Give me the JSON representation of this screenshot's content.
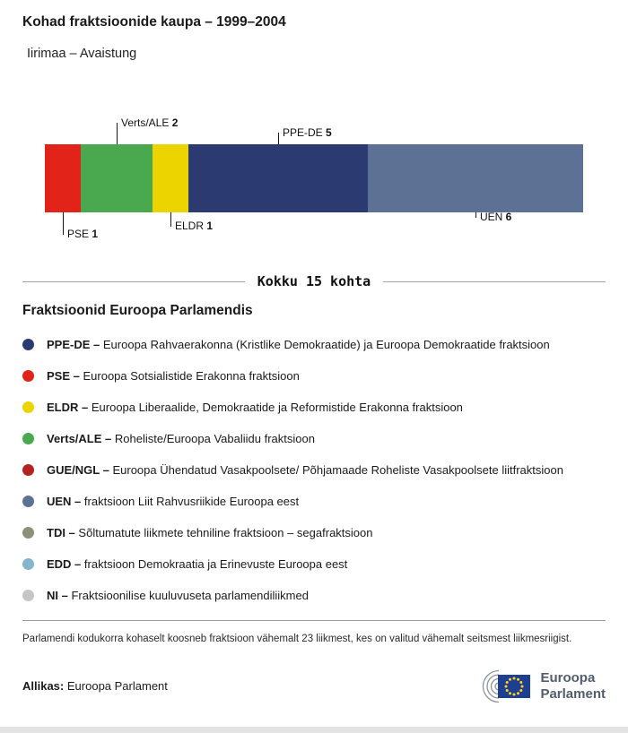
{
  "header": {
    "title": "Kohad fraktsioonide kaupa – 1999–2004",
    "subtitle": "Iirimaa – Avaistung"
  },
  "chart_data": {
    "type": "bar",
    "variant": "stacked-horizontal-seats",
    "title": "Kohad fraktsioonide kaupa – 1999–2004",
    "subtitle": "Iirimaa – Avaistung",
    "total_seats": 15,
    "total_label": "Kokku 15 kohta",
    "categories": [
      "PSE",
      "Verts/ALE",
      "ELDR",
      "PPE-DE",
      "UEN"
    ],
    "values": [
      1,
      2,
      1,
      5,
      6
    ],
    "segments": [
      {
        "name": "PSE",
        "seats": 1,
        "color": "#e2231a",
        "label_position": "below"
      },
      {
        "name": "Verts/ALE",
        "seats": 2,
        "color": "#4aa84e",
        "label_position": "above"
      },
      {
        "name": "ELDR",
        "seats": 1,
        "color": "#ecd400",
        "label_position": "below"
      },
      {
        "name": "PPE-DE",
        "seats": 5,
        "color": "#2b3a70",
        "label_position": "above"
      },
      {
        "name": "UEN",
        "seats": 6,
        "color": "#5c7194",
        "label_position": "below"
      }
    ]
  },
  "legend": {
    "title": "Fraktsioonid Euroopa Parlamendis",
    "items": [
      {
        "abbr": "PPE-DE –",
        "desc": "Euroopa Rahvaerakonna (Kristlike Demokraatide) ja Euroopa Demokraatide fraktsioon",
        "color": "#2b3a70"
      },
      {
        "abbr": "PSE –",
        "desc": "Euroopa Sotsialistide Erakonna fraktsioon",
        "color": "#e2231a"
      },
      {
        "abbr": "ELDR –",
        "desc": "Euroopa Liberaalide, Demokraatide ja Reformistide Erakonna fraktsioon",
        "color": "#ecd400"
      },
      {
        "abbr": "Verts/ALE –",
        "desc": "Roheliste/Euroopa Vabaliidu fraktsioon",
        "color": "#4aa84e"
      },
      {
        "abbr": "GUE/NGL –",
        "desc": "Euroopa Ühendatud Vasakpoolsete/ Põhjamaade Roheliste Vasakpoolsete liitfraktsioon",
        "color": "#b52321"
      },
      {
        "abbr": "UEN –",
        "desc": "fraktsioon Liit Rahvusriikide Euroopa eest",
        "color": "#5c7194"
      },
      {
        "abbr": "TDI –",
        "desc": "Sõltumatute liikmete tehniline fraktsioon – segafraktsioon",
        "color": "#8f9077"
      },
      {
        "abbr": "EDD –",
        "desc": "fraktsioon Demokraatia ja Erinevuste Euroopa eest",
        "color": "#84b5cc"
      },
      {
        "abbr": "NI –",
        "desc": "Fraktsioonilise kuuluvuseta parlamendiliikmed",
        "color": "#c6c6c6"
      }
    ]
  },
  "footnote": "Parlamendi kodukorra kohaselt koosneb fraktsioon vähemalt 23 liikmest, kes on valitud vähemalt seitsmest liikmesriigist.",
  "footer": {
    "source_label": "Allikas:",
    "source": "Euroopa Parlament",
    "logo_line1": "Euroopa",
    "logo_line2": "Parlament"
  }
}
